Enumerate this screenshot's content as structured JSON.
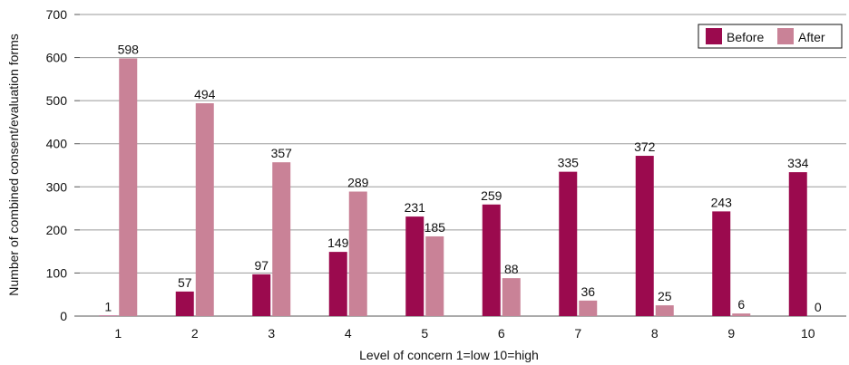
{
  "chart_data": {
    "type": "bar",
    "categories": [
      "1",
      "2",
      "3",
      "4",
      "5",
      "6",
      "7",
      "8",
      "9",
      "10"
    ],
    "series": [
      {
        "name": "Before",
        "values": [
          1,
          57,
          97,
          149,
          231,
          259,
          335,
          372,
          243,
          334
        ],
        "color": "#9b0a4e"
      },
      {
        "name": "After",
        "values": [
          598,
          494,
          357,
          289,
          185,
          88,
          36,
          25,
          6,
          0
        ],
        "color": "#c98297"
      }
    ],
    "title": "",
    "xlabel": "Level of concern 1=low 10=high",
    "ylabel": "Number of combined consent/evaluation forms",
    "ylim": [
      0,
      700
    ],
    "yticks": [
      0,
      100,
      200,
      300,
      400,
      500,
      600,
      700
    ],
    "grid": true,
    "legend_position": "top-right"
  }
}
